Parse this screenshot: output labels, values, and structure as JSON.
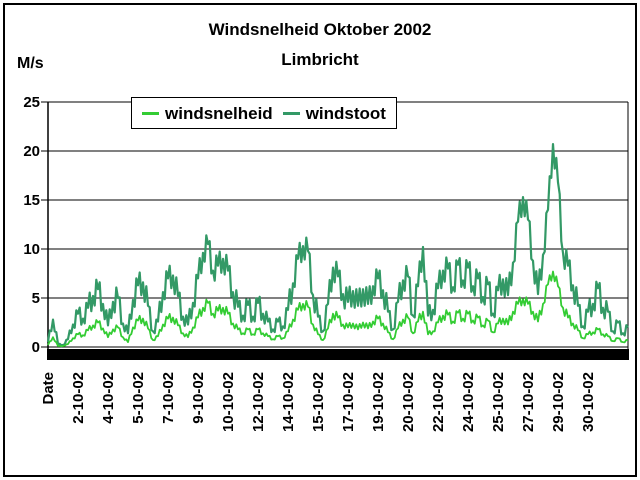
{
  "chart_data": {
    "type": "line",
    "title": "Windsnelheid Oktober 2002",
    "subtitle": "Limbricht",
    "ylabel": "M/s",
    "ylim": [
      0,
      25
    ],
    "y_ticks": [
      0,
      5,
      10,
      15,
      20,
      25
    ],
    "grid": "horizontal",
    "legend_position": "top-inside",
    "x_tick_labels": [
      "Date",
      "2-10-02",
      "4-10-02",
      "5-10-02",
      "7-10-02",
      "9-10-02",
      "10-10-02",
      "12-10-02",
      "14-10-02",
      "15-10-02",
      "17-10-02",
      "19-10-02",
      "20-10-02",
      "22-10-02",
      "24-10-02",
      "25-10-02",
      "27-10-02",
      "29-10-02",
      "30-10-02"
    ],
    "x_tick_every_n_points": 6,
    "series": [
      {
        "name": "windsnelheid",
        "color": "#33cc33",
        "line_width": 1.8,
        "noise_frac": 0.15,
        "noise_cap": 0.5,
        "values": [
          0.2,
          1.0,
          0.1,
          0.1,
          0.3,
          0.9,
          1.3,
          1.2,
          1.7,
          2.2,
          2.5,
          1.9,
          1.0,
          1.8,
          2.0,
          1.0,
          0.5,
          2.0,
          2.7,
          2.9,
          1.9,
          0.7,
          1.1,
          2.3,
          2.9,
          3.0,
          2.2,
          1.4,
          1.0,
          2.0,
          3.0,
          4.0,
          4.5,
          3.4,
          3.7,
          4.0,
          3.4,
          2.4,
          1.8,
          1.4,
          1.8,
          1.3,
          1.8,
          1.4,
          1.1,
          0.8,
          1.1,
          0.9,
          1.6,
          2.8,
          3.8,
          4.4,
          4.1,
          2.3,
          1.3,
          0.7,
          1.9,
          3.4,
          3.0,
          2.3,
          2.0,
          2.4,
          1.8,
          2.5,
          1.9,
          2.6,
          2.9,
          2.4,
          1.5,
          0.8,
          1.9,
          2.8,
          3.0,
          1.4,
          2.6,
          3.6,
          1.3,
          1.6,
          2.5,
          3.2,
          3.3,
          2.6,
          3.5,
          2.9,
          3.4,
          2.7,
          3.0,
          2.2,
          2.7,
          1.5,
          2.4,
          2.9,
          2.3,
          3.6,
          4.4,
          4.9,
          4.4,
          3.6,
          2.6,
          4.4,
          6.4,
          7.7,
          6.2,
          4.0,
          3.0,
          2.4,
          1.7,
          0.9,
          1.3,
          1.5,
          1.8,
          1.3,
          1.1,
          0.6,
          0.9,
          0.5,
          0.7
        ]
      },
      {
        "name": "windstoot",
        "color": "#339966",
        "line_width": 2.2,
        "noise_frac": 0.25,
        "noise_cap": 1.2,
        "values": [
          0.5,
          2.8,
          0.3,
          0.2,
          0.8,
          2.3,
          3.4,
          2.9,
          4.0,
          5.2,
          5.9,
          4.4,
          2.2,
          4.6,
          5.0,
          2.4,
          1.4,
          4.8,
          6.3,
          6.6,
          4.2,
          1.6,
          2.6,
          5.6,
          7.0,
          7.3,
          5.2,
          3.1,
          2.3,
          4.5,
          7.0,
          9.6,
          10.5,
          7.8,
          8.3,
          9.0,
          7.8,
          5.6,
          4.1,
          3.2,
          4.3,
          3.1,
          4.5,
          3.4,
          2.6,
          1.8,
          2.6,
          2.1,
          3.8,
          6.5,
          9.0,
          10.3,
          9.8,
          5.3,
          3.1,
          1.6,
          4.4,
          8.1,
          7.2,
          5.4,
          4.6,
          5.7,
          4.2,
          5.9,
          4.4,
          6.2,
          7.0,
          5.8,
          3.6,
          1.8,
          4.6,
          6.8,
          7.2,
          3.2,
          6.2,
          10.2,
          3.2,
          3.8,
          6.0,
          7.8,
          8.0,
          6.1,
          8.4,
          6.8,
          8.1,
          6.2,
          7.0,
          5.1,
          6.4,
          3.4,
          5.8,
          6.9,
          5.3,
          8.6,
          12.8,
          15.3,
          13.0,
          8.8,
          5.4,
          9.4,
          14.0,
          20.7,
          16.8,
          9.6,
          8.3,
          6.3,
          4.2,
          2.1,
          3.6,
          4.4,
          6.0,
          4.0,
          3.6,
          1.6,
          2.5,
          1.4,
          2.0
        ]
      }
    ]
  }
}
